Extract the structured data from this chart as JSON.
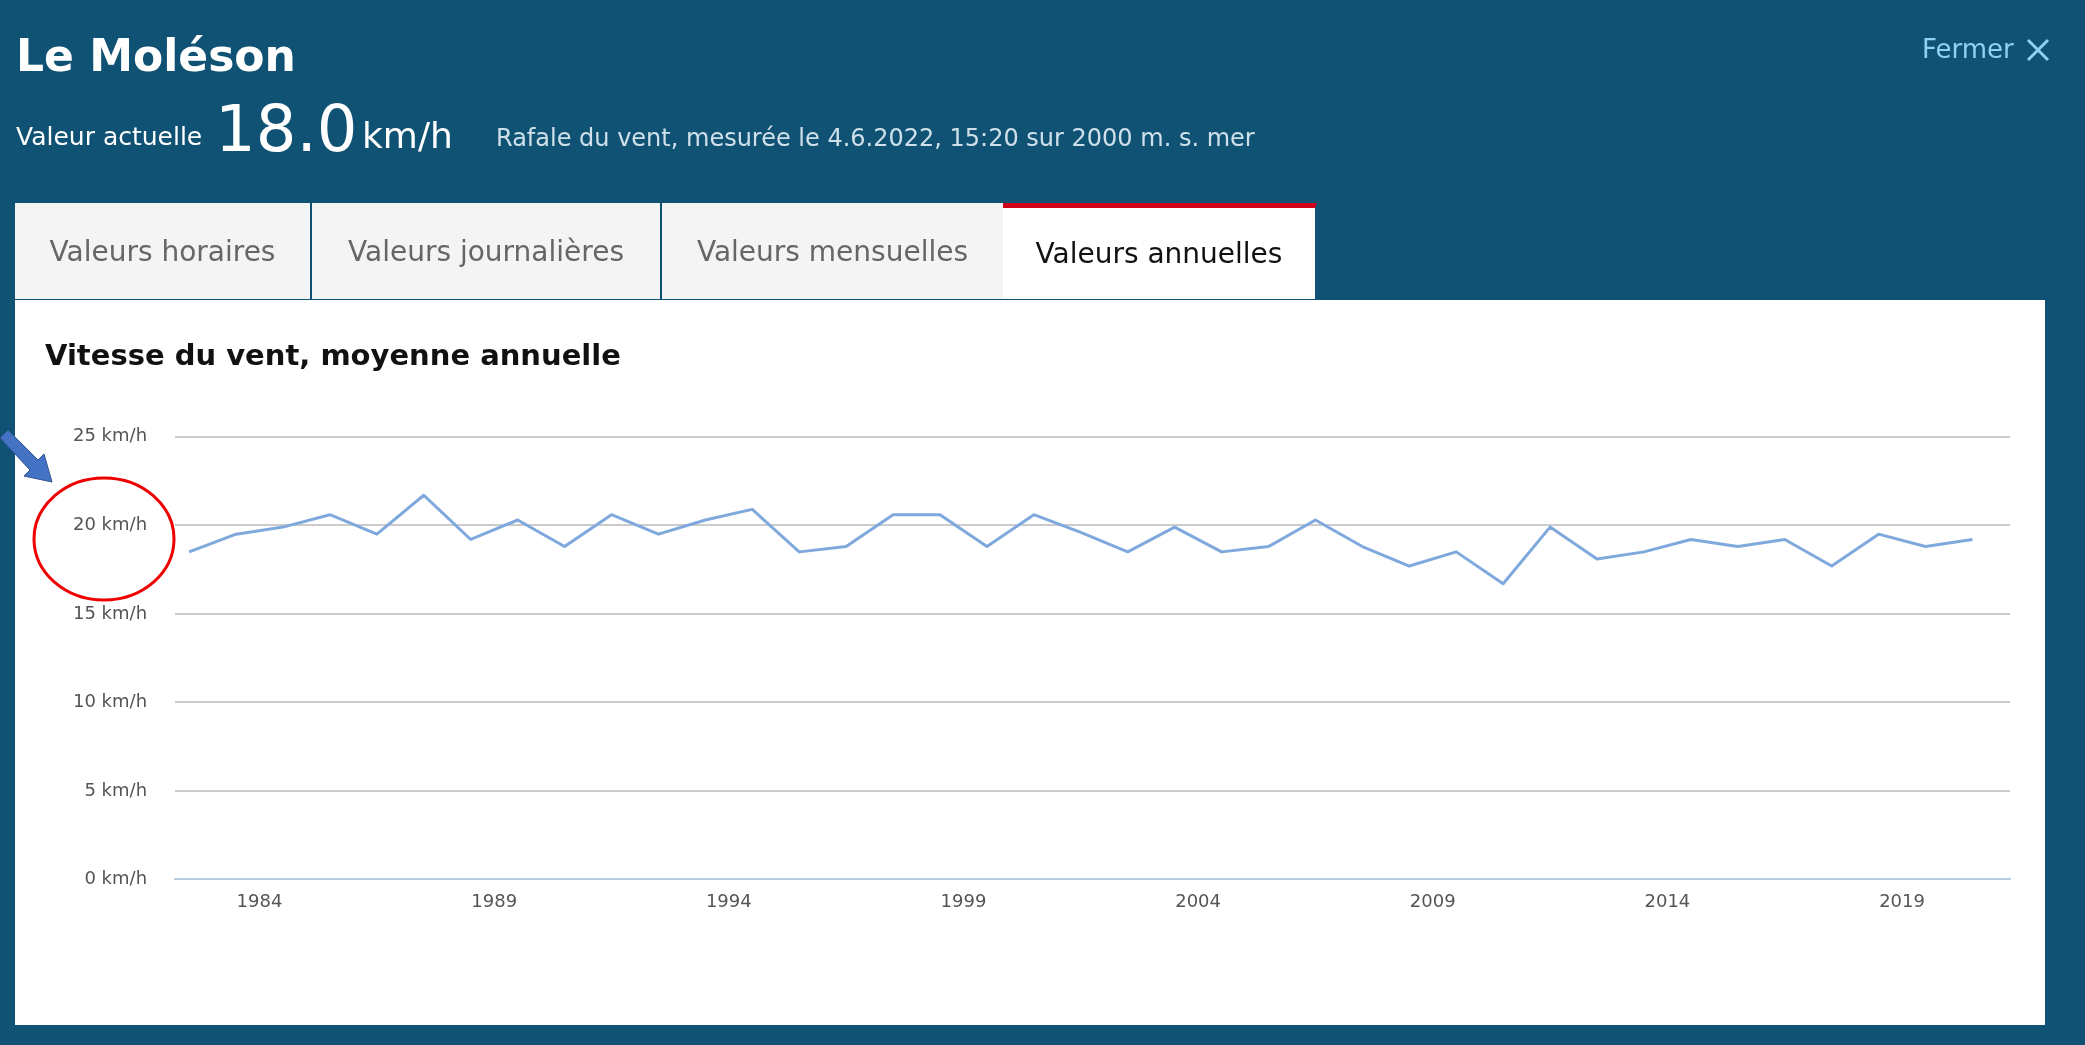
{
  "chart_data": {
    "type": "line",
    "title": "Vitesse du vent, moyenne annuelle",
    "annotations": [
      "Le Moléson",
      "Valeur actuelle",
      "18.0",
      "km/h",
      "Rafale du vent, mesurée le 4.6.2022, 15:20 sur 2000 m. s. mer",
      "Fermer",
      "Valeurs horaires",
      "Valeurs journalières",
      "Valeurs mensuelles",
      "Valeurs annuelles"
    ],
    "x": [
      1982.5,
      1983.5,
      1984.5,
      1985.5,
      1986.5,
      1987.5,
      1988.5,
      1989.5,
      1990.5,
      1991.5,
      1992.5,
      1993.5,
      1994.5,
      1995.5,
      1996.5,
      1997.5,
      1998.5,
      1999.5,
      2000.5,
      2001.5,
      2002.5,
      2003.5,
      2004.5,
      2005.5,
      2006.5,
      2007.5,
      2008.5,
      2009.5,
      2010.5,
      2011.5,
      2012.5,
      2013.5,
      2014.5,
      2015.5,
      2016.5,
      2017.5,
      2018.5,
      2019.5,
      2020.5
    ],
    "series": [
      {
        "color": "#7fa9dc",
        "values": [
          18.5,
          19.5,
          19.9,
          20.6,
          19.5,
          21.7,
          19.2,
          20.3,
          18.8,
          20.6,
          19.5,
          20.3,
          20.9,
          18.5,
          18.8,
          20.6,
          20.6,
          18.8,
          20.6,
          19.6,
          18.5,
          19.9,
          18.5,
          18.8,
          20.3,
          18.8,
          17.7,
          18.5,
          16.7,
          19.9,
          18.1,
          18.5,
          19.2,
          18.8,
          19.2,
          17.7,
          19.5,
          18.8,
          19.2
        ]
      }
    ],
    "xlim": [
      1982.2,
      2021.3
    ],
    "xticks": [
      1984,
      1989,
      1994,
      1999,
      2004,
      2009,
      2014,
      2019
    ],
    "ylim": [
      0,
      25
    ],
    "yticks": [
      {
        "value": 0,
        "label": "0 km/h"
      },
      {
        "value": 5,
        "label": "5 km/h"
      },
      {
        "value": 10,
        "label": "10 km/h"
      },
      {
        "value": 15,
        "label": "15 km/h"
      },
      {
        "value": 20,
        "label": "20 km/h"
      },
      {
        "value": 25,
        "label": "25 km/h"
      }
    ],
    "grid": "y",
    "legend": false,
    "marker": "none",
    "line_style": "solid"
  }
}
